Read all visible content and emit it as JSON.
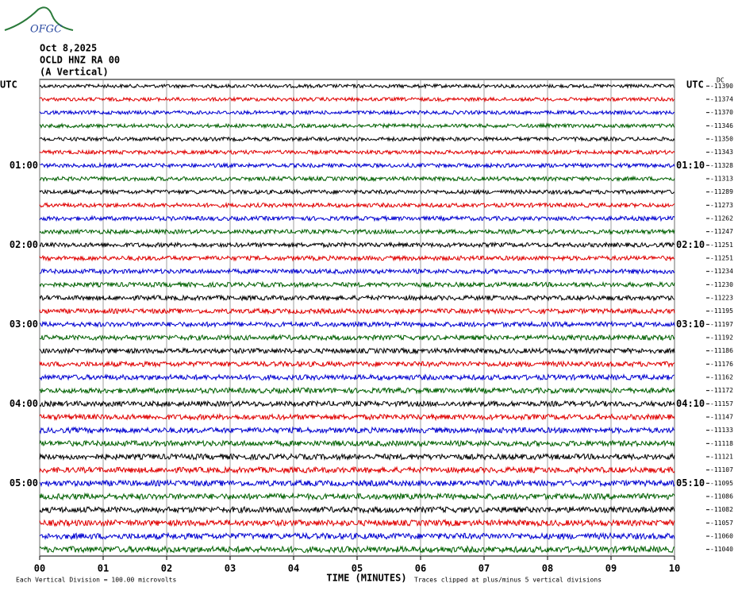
{
  "chart_data": {
    "type": "helicorder",
    "logo": "OFGC",
    "date": "Oct 8,2025",
    "station": "OCLD HNZ RA 00",
    "component": "(A Vertical)",
    "utc_label": "UTC",
    "dc_label": "DC",
    "x_label": "TIME (MINUTES)",
    "scale_note": "Each Vertical Division =  100.00 microvolts",
    "clip_note": "Traces clipped at plus/minus 5 vertical divisions",
    "xlim": [
      0,
      10
    ],
    "xticks": [
      {
        "value": 0,
        "label": "00"
      },
      {
        "value": 1,
        "label": "01"
      },
      {
        "value": 2,
        "label": "02"
      },
      {
        "value": 3,
        "label": "03"
      },
      {
        "value": 4,
        "label": "04"
      },
      {
        "value": 5,
        "label": "05"
      },
      {
        "value": 6,
        "label": "06"
      },
      {
        "value": 7,
        "label": "07"
      },
      {
        "value": 8,
        "label": "08"
      },
      {
        "value": 9,
        "label": "09"
      },
      10
    ],
    "trace_colors": [
      "#000000",
      "#e00000",
      "#0000d0",
      "#006000"
    ],
    "left_labels": [
      null,
      null,
      null,
      null,
      null,
      null,
      "01:00",
      null,
      null,
      null,
      null,
      null,
      "02:00",
      null,
      null,
      null,
      null,
      null,
      "03:00",
      null,
      null,
      null,
      null,
      null,
      "04:00",
      null,
      null,
      null,
      null,
      null,
      "05:00",
      null,
      null,
      null,
      null,
      null
    ],
    "right_labels": [
      null,
      null,
      null,
      null,
      null,
      null,
      "01:10",
      null,
      null,
      null,
      null,
      null,
      "02:10",
      null,
      null,
      null,
      null,
      null,
      "03:10",
      null,
      null,
      null,
      null,
      null,
      "04:10",
      null,
      null,
      null,
      null,
      null,
      "05:10",
      null,
      null,
      null,
      null,
      null
    ],
    "dc_offsets": [
      -11390,
      -11374,
      -11370,
      -11346,
      -11350,
      -11343,
      -11328,
      -11313,
      -11289,
      -11273,
      -11262,
      -11247,
      -11251,
      -11251,
      -11234,
      -11230,
      -11223,
      -11195,
      -11197,
      -11192,
      -11186,
      -11176,
      -11162,
      -11172,
      -11157,
      -11147,
      -11133,
      -11118,
      -11121,
      -11107,
      -11095,
      -11086,
      -11082,
      -11057,
      -11060,
      -11040
    ]
  }
}
